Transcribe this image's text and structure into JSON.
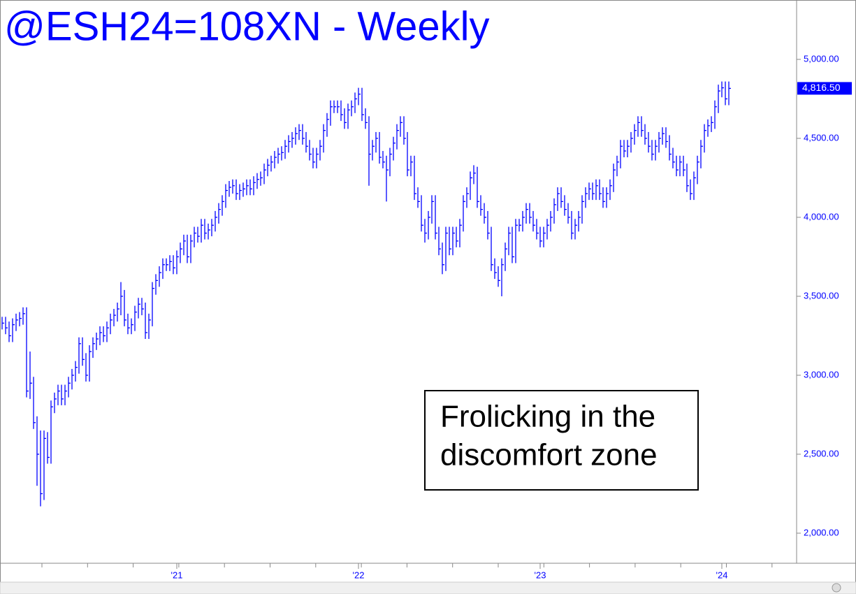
{
  "chart_data": {
    "type": "ohlc",
    "title": "@ESH24=108XN - Weekly",
    "color": "#0000ff",
    "annotation": [
      "Frolicking in the",
      "discomfort zone"
    ],
    "categories": [
      null,
      null,
      null,
      null,
      null,
      null,
      null,
      null,
      null,
      null,
      null,
      null,
      null,
      null,
      null,
      null,
      null,
      null,
      null,
      null,
      null,
      null,
      null,
      null,
      null,
      null,
      null,
      null,
      null,
      null,
      null,
      null,
      null,
      null,
      null,
      null,
      null,
      null,
      null,
      null,
      null,
      null,
      null,
      null,
      null,
      null,
      null,
      null,
      null,
      null,
      "'21",
      null,
      null,
      null,
      null,
      null,
      null,
      null,
      null,
      null,
      null,
      null,
      null,
      null,
      null,
      null,
      null,
      null,
      null,
      null,
      null,
      null,
      null,
      null,
      null,
      null,
      null,
      null,
      null,
      null,
      null,
      null,
      null,
      null,
      null,
      null,
      null,
      null,
      null,
      null,
      null,
      null,
      null,
      null,
      null,
      null,
      null,
      null,
      null,
      null,
      null,
      null,
      "'22",
      null,
      null,
      null,
      null,
      null,
      null,
      null,
      null,
      null,
      null,
      null,
      null,
      null,
      null,
      null,
      null,
      null,
      null,
      null,
      null,
      null,
      null,
      null,
      null,
      null,
      null,
      null,
      null,
      null,
      null,
      null,
      null,
      null,
      null,
      null,
      null,
      null,
      null,
      null,
      null,
      null,
      null,
      null,
      null,
      null,
      null,
      null,
      null,
      null,
      null,
      null,
      "'23",
      null,
      null,
      null,
      null,
      null,
      null,
      null,
      null,
      null,
      null,
      null,
      null,
      null,
      null,
      null,
      null,
      null,
      null,
      null,
      null,
      null,
      null,
      null,
      null,
      null,
      null,
      null,
      null,
      null,
      null,
      null,
      null,
      null,
      null,
      null,
      null,
      null,
      null,
      null,
      null,
      null,
      null,
      null,
      null,
      null,
      null,
      null,
      null,
      null,
      null,
      null,
      "'24",
      null,
      null
    ],
    "high": [
      3370,
      3370,
      3340,
      3360,
      3390,
      3400,
      3430,
      3430,
      3150,
      2990,
      2740,
      2650,
      2650,
      2640,
      2840,
      2890,
      2940,
      2940,
      2940,
      2990,
      3040,
      3090,
      3240,
      3240,
      3140,
      3190,
      3240,
      3270,
      3310,
      3310,
      3340,
      3390,
      3420,
      3460,
      3590,
      3540,
      3390,
      3360,
      3440,
      3490,
      3490,
      3460,
      3390,
      3590,
      3640,
      3690,
      3740,
      3740,
      3760,
      3760,
      3790,
      3840,
      3890,
      3890,
      3890,
      3940,
      3940,
      3990,
      3990,
      3960,
      3990,
      4040,
      4090,
      4140,
      4210,
      4230,
      4240,
      4240,
      4210,
      4220,
      4240,
      4240,
      4260,
      4280,
      4290,
      4340,
      4370,
      4390,
      4420,
      4440,
      4450,
      4490,
      4520,
      4540,
      4570,
      4590,
      4590,
      4540,
      4490,
      4440,
      4440,
      4490,
      4590,
      4660,
      4740,
      4740,
      4740,
      4740,
      4690,
      4720,
      4740,
      4790,
      4820,
      4820,
      4690,
      4640,
      4490,
      4540,
      4540,
      4420,
      4390,
      4440,
      4510,
      4590,
      4640,
      4640,
      4540,
      4390,
      4390,
      4190,
      4140,
      3990,
      4040,
      4140,
      4140,
      3940,
      3840,
      3940,
      3940,
      3940,
      3940,
      3990,
      4140,
      4190,
      4290,
      4330,
      4320,
      4140,
      4090,
      4040,
      3940,
      3740,
      3690,
      3740,
      3840,
      3940,
      3940,
      3990,
      3990,
      4040,
      4090,
      4090,
      4040,
      3990,
      3940,
      3940,
      3990,
      4040,
      4120,
      4190,
      4190,
      4140,
      4090,
      4040,
      3990,
      4040,
      4140,
      4190,
      4220,
      4220,
      4240,
      4240,
      4190,
      4190,
      4240,
      4340,
      4390,
      4490,
      4490,
      4490,
      4540,
      4590,
      4640,
      4640,
      4590,
      4540,
      4490,
      4490,
      4540,
      4570,
      4570,
      4520,
      4440,
      4390,
      4390,
      4390,
      4340,
      4240,
      4290,
      4390,
      4490,
      4590,
      4620,
      4640,
      4740,
      4840,
      4860,
      4860,
      4860
    ],
    "low": [
      3290,
      3260,
      3210,
      3210,
      3280,
      3310,
      3320,
      2860,
      2850,
      2660,
      2300,
      2170,
      2210,
      2440,
      2440,
      2760,
      2810,
      2810,
      2810,
      2860,
      2910,
      2960,
      3010,
      3060,
      2960,
      2960,
      3110,
      3160,
      3190,
      3210,
      3210,
      3260,
      3310,
      3340,
      3380,
      3310,
      3260,
      3260,
      3280,
      3360,
      3380,
      3230,
      3230,
      3310,
      3510,
      3560,
      3610,
      3660,
      3660,
      3640,
      3640,
      3710,
      3760,
      3710,
      3710,
      3810,
      3840,
      3840,
      3860,
      3860,
      3880,
      3910,
      3960,
      4010,
      4060,
      4130,
      4150,
      4110,
      4110,
      4130,
      4140,
      4140,
      4140,
      4180,
      4200,
      4210,
      4260,
      4290,
      4310,
      4340,
      4360,
      4370,
      4410,
      4440,
      4460,
      4490,
      4460,
      4410,
      4360,
      4310,
      4310,
      4360,
      4410,
      4510,
      4580,
      4660,
      4660,
      4610,
      4560,
      4560,
      4640,
      4660,
      4710,
      4610,
      4560,
      4200,
      4360,
      4410,
      4340,
      4310,
      4100,
      4260,
      4360,
      4430,
      4510,
      4460,
      4260,
      4260,
      4110,
      4060,
      3910,
      3840,
      3860,
      3960,
      3860,
      3760,
      3640,
      3660,
      3760,
      3760,
      3810,
      3810,
      3910,
      4060,
      4110,
      4210,
      4060,
      4010,
      3960,
      3860,
      3660,
      3610,
      3560,
      3500,
      3660,
      3760,
      3710,
      3710,
      3910,
      3910,
      3960,
      3960,
      3910,
      3860,
      3810,
      3810,
      3860,
      3910,
      3960,
      4040,
      4060,
      4010,
      3960,
      3860,
      3860,
      3910,
      3960,
      4060,
      4110,
      4110,
      4110,
      4110,
      4060,
      4060,
      4110,
      4160,
      4260,
      4310,
      4380,
      4380,
      4410,
      4460,
      4510,
      4510,
      4460,
      4410,
      4360,
      4360,
      4410,
      4460,
      4440,
      4360,
      4310,
      4260,
      4260,
      4260,
      4160,
      4110,
      4110,
      4210,
      4310,
      4410,
      4510,
      4540,
      4560,
      4660,
      4760,
      4710,
      4710
    ],
    "close": [
      3330,
      3300,
      3250,
      3320,
      3350,
      3360,
      3390,
      2900,
      2950,
      2700,
      2500,
      2250,
      2600,
      2480,
      2800,
      2850,
      2900,
      2850,
      2900,
      2950,
      3000,
      3050,
      3200,
      3100,
      3000,
      3150,
      3200,
      3230,
      3270,
      3250,
      3300,
      3350,
      3380,
      3420,
      3500,
      3350,
      3300,
      3320,
      3400,
      3450,
      3420,
      3270,
      3350,
      3550,
      3600,
      3650,
      3700,
      3700,
      3720,
      3680,
      3750,
      3800,
      3850,
      3750,
      3850,
      3900,
      3880,
      3950,
      3900,
      3920,
      3950,
      4000,
      4050,
      4100,
      4170,
      4190,
      4200,
      4150,
      4170,
      4180,
      4200,
      4180,
      4220,
      4240,
      4250,
      4300,
      4330,
      4350,
      4380,
      4400,
      4410,
      4450,
      4480,
      4500,
      4530,
      4550,
      4500,
      4450,
      4400,
      4350,
      4400,
      4450,
      4550,
      4620,
      4700,
      4700,
      4700,
      4650,
      4600,
      4680,
      4700,
      4750,
      4780,
      4650,
      4600,
      4400,
      4450,
      4500,
      4380,
      4350,
      4300,
      4400,
      4470,
      4550,
      4600,
      4500,
      4300,
      4350,
      4150,
      4100,
      3950,
      3900,
      4000,
      4100,
      3900,
      3800,
      3700,
      3900,
      3800,
      3900,
      3850,
      3950,
      4100,
      4150,
      4250,
      4280,
      4100,
      4050,
      4000,
      3900,
      3700,
      3650,
      3600,
      3700,
      3800,
      3900,
      3750,
      3950,
      3950,
      4000,
      4050,
      4000,
      3950,
      3900,
      3850,
      3900,
      3950,
      4000,
      4080,
      4150,
      4100,
      4050,
      4000,
      3900,
      3950,
      4000,
      4100,
      4150,
      4180,
      4150,
      4200,
      4150,
      4100,
      4150,
      4200,
      4300,
      4350,
      4450,
      4420,
      4450,
      4500,
      4550,
      4600,
      4550,
      4500,
      4450,
      4400,
      4450,
      4500,
      4530,
      4480,
      4400,
      4350,
      4300,
      4350,
      4300,
      4200,
      4150,
      4250,
      4350,
      4450,
      4550,
      4580,
      4600,
      4700,
      4800,
      4820,
      4750,
      4816.5
    ],
    "last_price": {
      "value": 4816.5,
      "label": "4,816.50"
    },
    "ylim": [
      1814,
      5376
    ],
    "yticks": [
      {
        "value": 2000,
        "label": "2,000.00"
      },
      {
        "value": 2500,
        "label": "2,500.00"
      },
      {
        "value": 3000,
        "label": "3,000.00"
      },
      {
        "value": 3500,
        "label": "3,500.00"
      },
      {
        "value": 4000,
        "label": "4,000.00"
      },
      {
        "value": 4500,
        "label": "4,500.00"
      },
      {
        "value": 5000,
        "label": "5,000.00"
      }
    ]
  }
}
